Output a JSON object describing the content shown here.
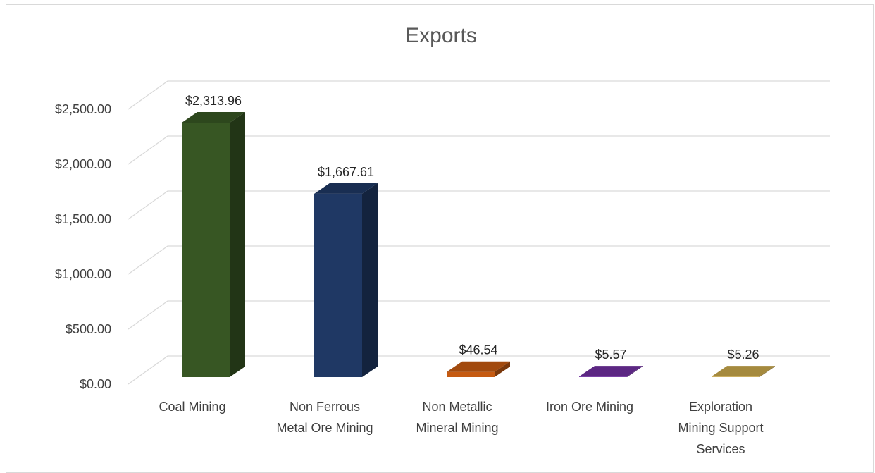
{
  "chart_data": {
    "type": "bar",
    "title": "Exports",
    "categories": [
      [
        "Coal Mining"
      ],
      [
        "Non Ferrous",
        "Metal Ore Mining"
      ],
      [
        "Non Metallic",
        "Mineral Mining"
      ],
      [
        "Iron Ore Mining"
      ],
      [
        "Exploration",
        "Mining Support",
        "Services"
      ]
    ],
    "values": [
      2313.96,
      1667.61,
      46.54,
      5.57,
      5.26
    ],
    "data_labels": [
      "$2,313.96",
      "$1,667.61",
      "$46.54",
      "$5.57",
      "$5.26"
    ],
    "colors": [
      "#375623",
      "#1f3864",
      "#c55a11",
      "#7030a0",
      "#c9a84c"
    ],
    "y_ticks": [
      "$0.00",
      "$500.00",
      "$1,000.00",
      "$1,500.00",
      "$2,000.00",
      "$2,500.00"
    ],
    "ylim": [
      0,
      2500
    ],
    "grid": true,
    "legend": "none",
    "style": "3d-column"
  }
}
